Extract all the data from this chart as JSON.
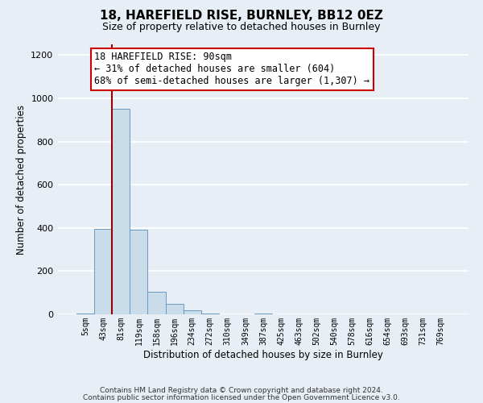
{
  "title1": "18, HAREFIELD RISE, BURNLEY, BB12 0EZ",
  "title2": "Size of property relative to detached houses in Burnley",
  "xlabel": "Distribution of detached houses by size in Burnley",
  "ylabel": "Number of detached properties",
  "footnote1": "Contains HM Land Registry data © Crown copyright and database right 2024.",
  "footnote2": "Contains public sector information licensed under the Open Government Licence v3.0.",
  "bar_labels": [
    "5sqm",
    "43sqm",
    "81sqm",
    "119sqm",
    "158sqm",
    "196sqm",
    "234sqm",
    "272sqm",
    "310sqm",
    "349sqm",
    "387sqm",
    "425sqm",
    "463sqm",
    "502sqm",
    "540sqm",
    "578sqm",
    "616sqm",
    "654sqm",
    "693sqm",
    "731sqm",
    "769sqm"
  ],
  "bar_values": [
    5,
    395,
    950,
    390,
    105,
    50,
    20,
    5,
    0,
    0,
    5,
    0,
    0,
    0,
    0,
    0,
    0,
    0,
    0,
    0,
    0
  ],
  "bar_color": "#c8dcea",
  "bar_edge_color": "#6a9abf",
  "vline_color": "#990000",
  "annotation_text": "18 HAREFIELD RISE: 90sqm\n← 31% of detached houses are smaller (604)\n68% of semi-detached houses are larger (1,307) →",
  "annotation_box_color": "#ffffff",
  "annotation_box_edge": "#cc0000",
  "ylim": [
    0,
    1250
  ],
  "yticks": [
    0,
    200,
    400,
    600,
    800,
    1000,
    1200
  ],
  "bg_color": "#e8eef5",
  "plot_bg_color": "#e8eef5",
  "grid_color": "#ffffff",
  "title1_fontsize": 11,
  "title2_fontsize": 9,
  "annotation_fontsize": 8.5,
  "footnote_fontsize": 6.5
}
